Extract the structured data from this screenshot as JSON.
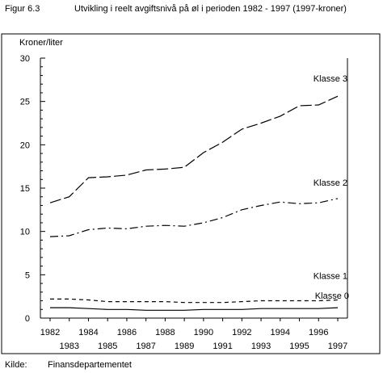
{
  "figure": {
    "number": "Figur 6.3",
    "title": "Utvikling i reelt avgiftsnivå på øl i perioden 1982 - 1997 (1997-kroner)"
  },
  "source": {
    "label": "Kilde:",
    "value": "Finansdepartementet"
  },
  "chart_data": {
    "type": "line",
    "title": "Utvikling i reelt avgiftsnivå på øl i perioden 1982 - 1997 (1997-kroner)",
    "ylabel": "Kroner/liter",
    "xlabel": "",
    "ylim": [
      0,
      30
    ],
    "yticks": [
      0,
      5,
      10,
      15,
      20,
      25,
      30
    ],
    "x": [
      "1982",
      "1983",
      "1984",
      "1985",
      "1986",
      "1987",
      "1988",
      "1989",
      "1990",
      "1991",
      "1992",
      "1993",
      "1994",
      "1995",
      "1996",
      "1997"
    ],
    "grid": false,
    "legend": "inline labels at line ends",
    "series": [
      {
        "name": "Klasse 3",
        "style": "long-dash",
        "values": [
          13.3,
          14.0,
          16.2,
          16.3,
          16.5,
          17.1,
          17.2,
          17.4,
          19.1,
          20.3,
          21.8,
          22.5,
          23.3,
          24.5,
          24.6,
          25.6
        ]
      },
      {
        "name": "Klasse 2",
        "style": "dash-dot",
        "values": [
          9.4,
          9.5,
          10.2,
          10.4,
          10.3,
          10.6,
          10.7,
          10.6,
          11.0,
          11.6,
          12.5,
          13.0,
          13.4,
          13.2,
          13.3,
          13.8
        ]
      },
      {
        "name": "Klasse 1",
        "style": "short-dash",
        "values": [
          2.2,
          2.2,
          2.1,
          1.9,
          1.9,
          1.9,
          1.9,
          1.8,
          1.8,
          1.8,
          1.9,
          2.0,
          2.0,
          2.0,
          2.0,
          2.1
        ]
      },
      {
        "name": "Klasse 0",
        "style": "solid",
        "values": [
          1.2,
          1.2,
          1.1,
          1.0,
          1.0,
          0.9,
          0.9,
          0.9,
          1.0,
          1.0,
          1.0,
          1.1,
          1.1,
          1.1,
          1.1,
          1.2
        ]
      }
    ],
    "colors": {
      "line": "#000000",
      "background": "#ffffff"
    }
  }
}
